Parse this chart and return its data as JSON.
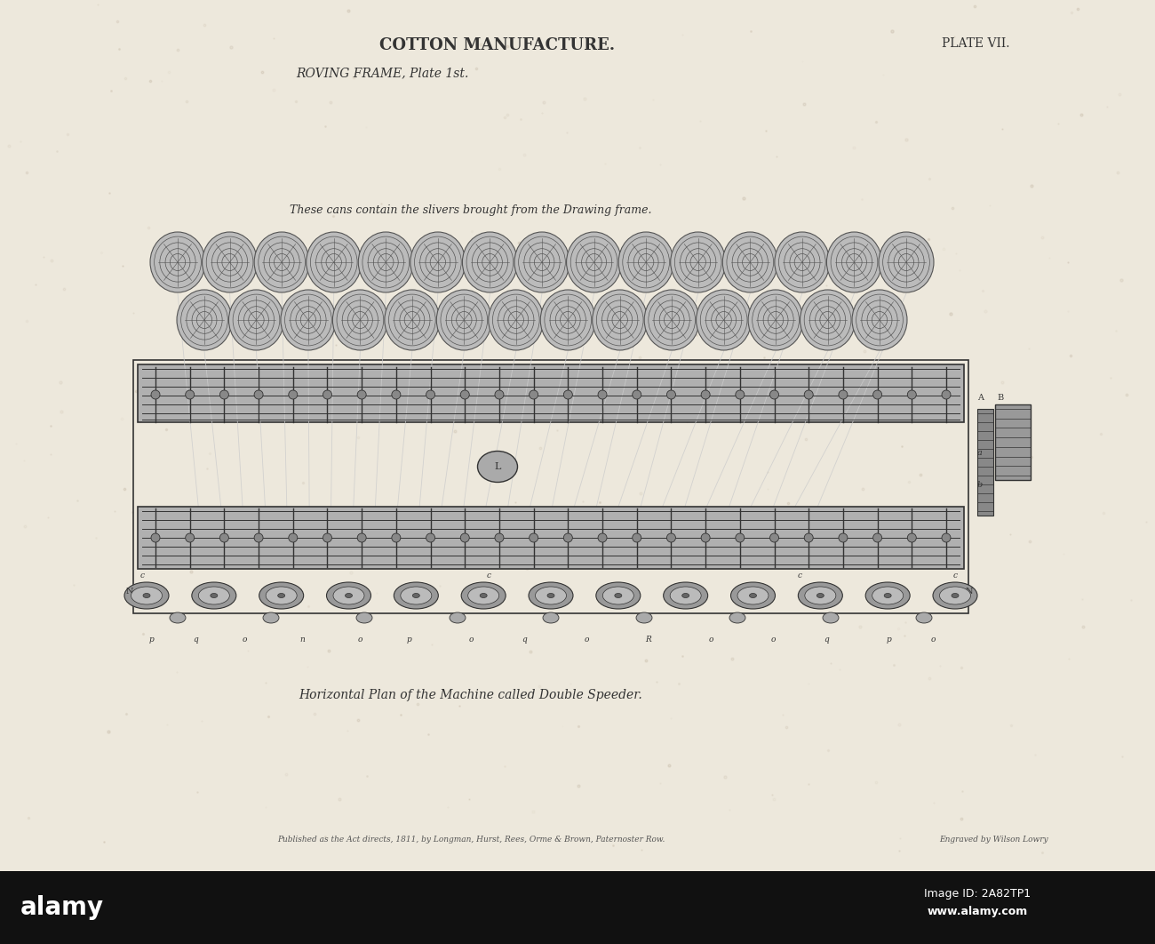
{
  "bg_color": "#EDE8DC",
  "title": "COTTON MANUFACTURE.",
  "plate": "PLATE VII.",
  "subtitle": "ROVING FRAME, Plate 1st.",
  "caption_top": "These cans contain the slivers brought from the Drawing frame.",
  "caption_bottom": "Horizontal Plan of the Machine called Double Speeder.",
  "publisher": "Published as the Act directs, 1811, by Longman, Hurst, Rees, Orme & Brown, Paternoster Row.",
  "engraver": "Engraved by Wilson Lowry",
  "title_fontsize": 13,
  "subtitle_fontsize": 10,
  "caption_fontsize": 9,
  "small_fontsize": 7,
  "frame_color": "#555555",
  "dark_color": "#333333",
  "mid_color": "#777777",
  "light_color": "#aaaaaa"
}
